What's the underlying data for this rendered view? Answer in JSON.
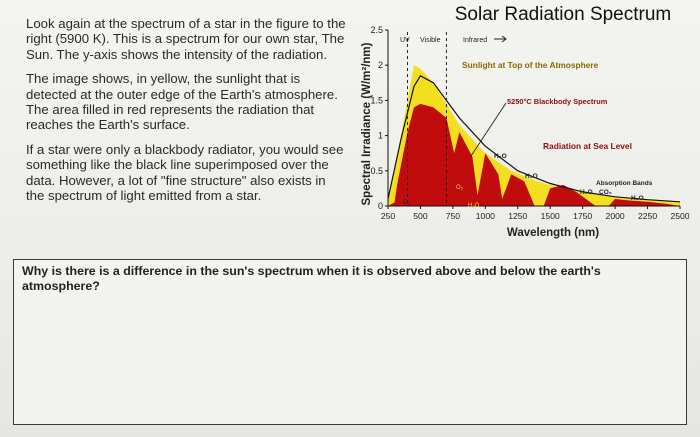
{
  "worksheet": {
    "paragraphs": [
      "Look again at the spectrum of a star in the figure to the right (5900 K). This is a spectrum for our own star, The Sun. The y-axis shows the intensity of the radiation.",
      "The image shows, in yellow, the sunlight that is detected at the outer edge of the Earth's atmosphere. The area filled in red represents the radiation that reaches the Earth's surface.",
      "If a star were only a blackbody radiator, you would see something like the black line superimposed over the data. However, a lot of \"fine structure\" also exists in the spectrum of light emitted from a star."
    ],
    "question": "Why is there is a difference in the sun's spectrum when it is observed above and below the earth's atmosphere?"
  },
  "figure": {
    "title": "Solar Radiation Spectrum",
    "ylabel": "Spectral Irradiance (W/m²/nm)",
    "xlabel": "Wavelength (nm)",
    "region_labels": {
      "uv": "UV",
      "visible": "Visible",
      "infrared": "Infrared"
    },
    "annotations": {
      "top": "Sunlight at Top of the Atmosphere",
      "blackbody": "5250°C Blackbody Spectrum",
      "sea": "Radiation at Sea Level",
      "absorption": "Absorption Bands",
      "h2o": "H₂O",
      "o2": "O₂",
      "o3": "O₃",
      "co2": "CO₂"
    },
    "colors": {
      "top": "#f3df1f",
      "sea": "#c00c0c",
      "blackbody": "#111111"
    }
  },
  "chart_data": {
    "type": "area",
    "title": "Solar Radiation Spectrum",
    "xlabel": "Wavelength (nm)",
    "ylabel": "Spectral Irradiance (W/m²/nm)",
    "xlim": [
      250,
      2500
    ],
    "ylim": [
      0,
      2.5
    ],
    "x_ticks": [
      250,
      500,
      750,
      1000,
      1250,
      1500,
      1750,
      2000,
      2250,
      2500
    ],
    "y_ticks": [
      0,
      0.5,
      1,
      1.5,
      2,
      2.5
    ],
    "series": [
      {
        "name": "Sunlight at Top of the Atmosphere",
        "x": [
          250,
          300,
          350,
          400,
          450,
          500,
          550,
          600,
          700,
          800,
          900,
          1000,
          1200,
          1400,
          1600,
          1800,
          2000,
          2250,
          2500
        ],
        "values": [
          0.1,
          0.5,
          1.0,
          1.5,
          2.0,
          1.95,
          1.85,
          1.75,
          1.45,
          1.15,
          0.95,
          0.75,
          0.5,
          0.35,
          0.25,
          0.18,
          0.12,
          0.08,
          0.06
        ]
      },
      {
        "name": "5250°C Blackbody Spectrum",
        "x": [
          250,
          350,
          450,
          500,
          600,
          700,
          800,
          1000,
          1250,
          1500,
          1750,
          2000,
          2250,
          2500
        ],
        "values": [
          0.1,
          0.95,
          1.7,
          1.85,
          1.75,
          1.5,
          1.25,
          0.85,
          0.5,
          0.32,
          0.2,
          0.13,
          0.09,
          0.06
        ]
      },
      {
        "name": "Radiation at Sea Level",
        "x": [
          250,
          300,
          320,
          400,
          450,
          500,
          600,
          700,
          760,
          800,
          900,
          940,
          1000,
          1100,
          1130,
          1200,
          1300,
          1380,
          1450,
          1500,
          1600,
          1700,
          1850,
          1950,
          2000,
          2100,
          2250,
          2400,
          2500
        ],
        "values": [
          0.0,
          0.05,
          0.3,
          1.05,
          1.4,
          1.45,
          1.4,
          1.25,
          0.75,
          1.05,
          0.7,
          0.15,
          0.75,
          0.45,
          0.1,
          0.45,
          0.35,
          0.0,
          0.0,
          0.25,
          0.3,
          0.2,
          0.0,
          0.0,
          0.1,
          0.08,
          0.06,
          0.03,
          0.0
        ]
      }
    ],
    "region_boundaries": [
      400,
      700
    ]
  }
}
